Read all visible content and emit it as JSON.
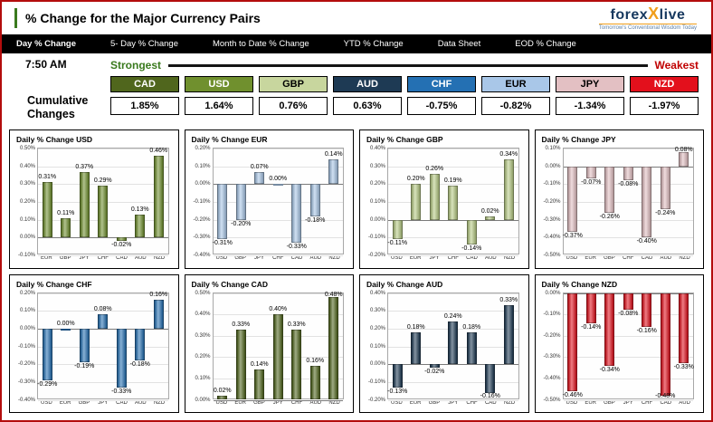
{
  "page": {
    "title": "% Change for the Major Currency Pairs"
  },
  "logo": {
    "part1": "forex",
    "x": "X",
    "part2": "live",
    "tagline": "Tomorrow's Conventional Wisdom Today"
  },
  "nav": {
    "tabs": [
      "Day % Change",
      "5- Day % Change",
      "Month to Date % Change",
      "YTD % Change",
      "Data Sheet",
      "EOD % Change"
    ]
  },
  "summary": {
    "time": "7:50 AM",
    "strongest_label": "Strongest",
    "weakest_label": "Weakest",
    "cumulative_label": "Cumulative Changes",
    "currencies": [
      {
        "code": "CAD",
        "value": "1.85%",
        "bg": "#50661d",
        "fg": "#ffffff"
      },
      {
        "code": "USD",
        "value": "1.64%",
        "bg": "#70902e",
        "fg": "#ffffff"
      },
      {
        "code": "GBP",
        "value": "0.76%",
        "bg": "#c8d69e",
        "fg": "#000000"
      },
      {
        "code": "AUD",
        "value": "0.63%",
        "bg": "#1e3a54",
        "fg": "#ffffff"
      },
      {
        "code": "CHF",
        "value": "-0.75%",
        "bg": "#2470b3",
        "fg": "#ffffff"
      },
      {
        "code": "EUR",
        "value": "-0.82%",
        "bg": "#a9c7e8",
        "fg": "#000000"
      },
      {
        "code": "JPY",
        "value": "-1.34%",
        "bg": "#e3c0c3",
        "fg": "#000000"
      },
      {
        "code": "NZD",
        "value": "-1.97%",
        "bg": "#e3101c",
        "fg": "#ffffff"
      }
    ]
  },
  "chart_data": [
    {
      "type": "bar",
      "title": "Daily % Change USD",
      "color": "#70902e",
      "categories": [
        "EUR",
        "GBP",
        "JPY",
        "CHF",
        "CAD",
        "AUD",
        "NZD"
      ],
      "values": [
        0.31,
        0.11,
        0.37,
        0.29,
        -0.02,
        0.13,
        0.46
      ],
      "ylim": [
        -0.1,
        0.5
      ],
      "ytick": 0.1,
      "grid": true,
      "legend": "none"
    },
    {
      "type": "bar",
      "title": "Daily % Change EUR",
      "color": "#a9c7e8",
      "categories": [
        "USD",
        "GBP",
        "JPY",
        "CHF",
        "CAD",
        "AUD",
        "NZD"
      ],
      "values": [
        -0.31,
        -0.2,
        0.07,
        0.0,
        -0.33,
        -0.18,
        0.14
      ],
      "ylim": [
        -0.4,
        0.2
      ],
      "ytick": 0.1,
      "grid": true,
      "legend": "none"
    },
    {
      "type": "bar",
      "title": "Daily % Change GBP",
      "color": "#b8cc85",
      "categories": [
        "USD",
        "EUR",
        "JPY",
        "CHF",
        "CAD",
        "AUD",
        "NZD"
      ],
      "values": [
        -0.11,
        0.2,
        0.26,
        0.19,
        -0.14,
        0.02,
        0.34
      ],
      "ylim": [
        -0.2,
        0.4
      ],
      "ytick": 0.1,
      "grid": true,
      "legend": "none"
    },
    {
      "type": "bar",
      "title": "Daily % Change JPY",
      "color": "#e3c0c3",
      "categories": [
        "USD",
        "EUR",
        "GBP",
        "CHF",
        "CAD",
        "AUD",
        "NZD"
      ],
      "values": [
        -0.37,
        -0.07,
        -0.26,
        -0.08,
        -0.4,
        -0.24,
        0.08
      ],
      "ylim": [
        -0.5,
        0.1
      ],
      "ytick": 0.1,
      "grid": true,
      "legend": "none"
    },
    {
      "type": "bar",
      "title": "Daily % Change CHF",
      "color": "#2470b3",
      "categories": [
        "USD",
        "EUR",
        "GBP",
        "JPY",
        "CAD",
        "AUD",
        "NZD"
      ],
      "values": [
        -0.29,
        0.0,
        -0.19,
        0.08,
        -0.33,
        -0.18,
        0.16
      ],
      "ylim": [
        -0.4,
        0.2
      ],
      "ytick": 0.1,
      "grid": true,
      "legend": "none"
    },
    {
      "type": "bar",
      "title": "Daily % Change CAD",
      "color": "#50661d",
      "categories": [
        "USD",
        "EUR",
        "GBP",
        "JPY",
        "CHF",
        "AUD",
        "NZD"
      ],
      "values": [
        0.02,
        0.33,
        0.14,
        0.4,
        0.33,
        0.16,
        0.48
      ],
      "ylim": [
        0.0,
        0.5
      ],
      "ytick": 0.1,
      "grid": true,
      "legend": "none"
    },
    {
      "type": "bar",
      "title": "Daily % Change AUD",
      "color": "#1e3a54",
      "categories": [
        "USD",
        "EUR",
        "GBP",
        "JPY",
        "CHF",
        "CAD",
        "NZD"
      ],
      "values": [
        -0.13,
        0.18,
        -0.02,
        0.24,
        0.18,
        -0.16,
        0.33
      ],
      "ylim": [
        -0.2,
        0.4
      ],
      "ytick": 0.1,
      "grid": true,
      "legend": "none"
    },
    {
      "type": "bar",
      "title": "Daily % Change NZD",
      "color": "#e3101c",
      "categories": [
        "USD",
        "EUR",
        "GBP",
        "JPY",
        "CHF",
        "CAD",
        "AUD"
      ],
      "values": [
        -0.46,
        -0.14,
        -0.34,
        -0.08,
        -0.16,
        -0.48,
        -0.33
      ],
      "ylim": [
        -0.5,
        0.0
      ],
      "ytick": 0.1,
      "grid": true,
      "legend": "none"
    }
  ]
}
